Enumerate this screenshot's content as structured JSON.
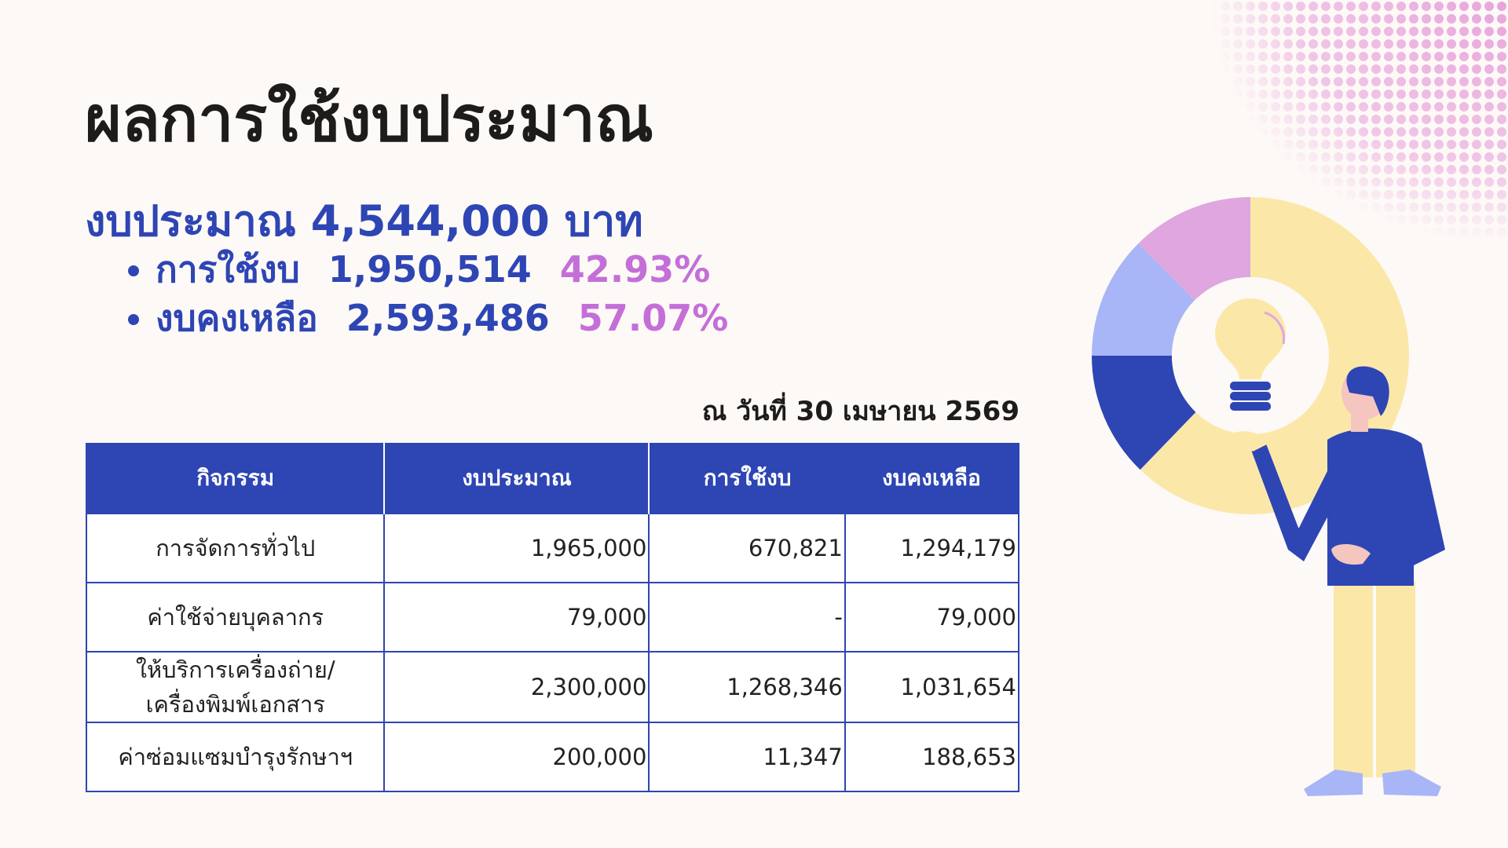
{
  "title": "ผลการใช้งบประมาณ",
  "summary": {
    "budget": "งบประมาณ 4,544,000 บาท",
    "items": [
      {
        "label": "การใช้งบ",
        "amount": "1,950,514",
        "percent": "42.93%"
      },
      {
        "label": "งบคงเหลือ",
        "amount": "2,593,486",
        "percent": "57.07%"
      }
    ]
  },
  "date": "ณ วันที่ 30 เมษายน 2569",
  "table": {
    "headers": [
      "กิจกรรม",
      "งบประมาณ",
      "การใช้งบ",
      "งบคงเหลือ"
    ],
    "rows": [
      [
        "การจัดการทั่วไป",
        "1,965,000",
        "670,821",
        "1,294,179"
      ],
      [
        "ค่าใช้จ่ายบุคลากร",
        "79,000",
        "-",
        "79,000"
      ],
      [
        "ให้บริการเครื่องถ่าย/\nเครื่องพิมพ์เอกสาร",
        "2,300,000",
        "1,268,346",
        "1,031,654"
      ],
      [
        "ค่าซ่อมแซมบำรุงรักษาฯ",
        "200,000",
        "11,347",
        "188,653"
      ]
    ]
  }
}
